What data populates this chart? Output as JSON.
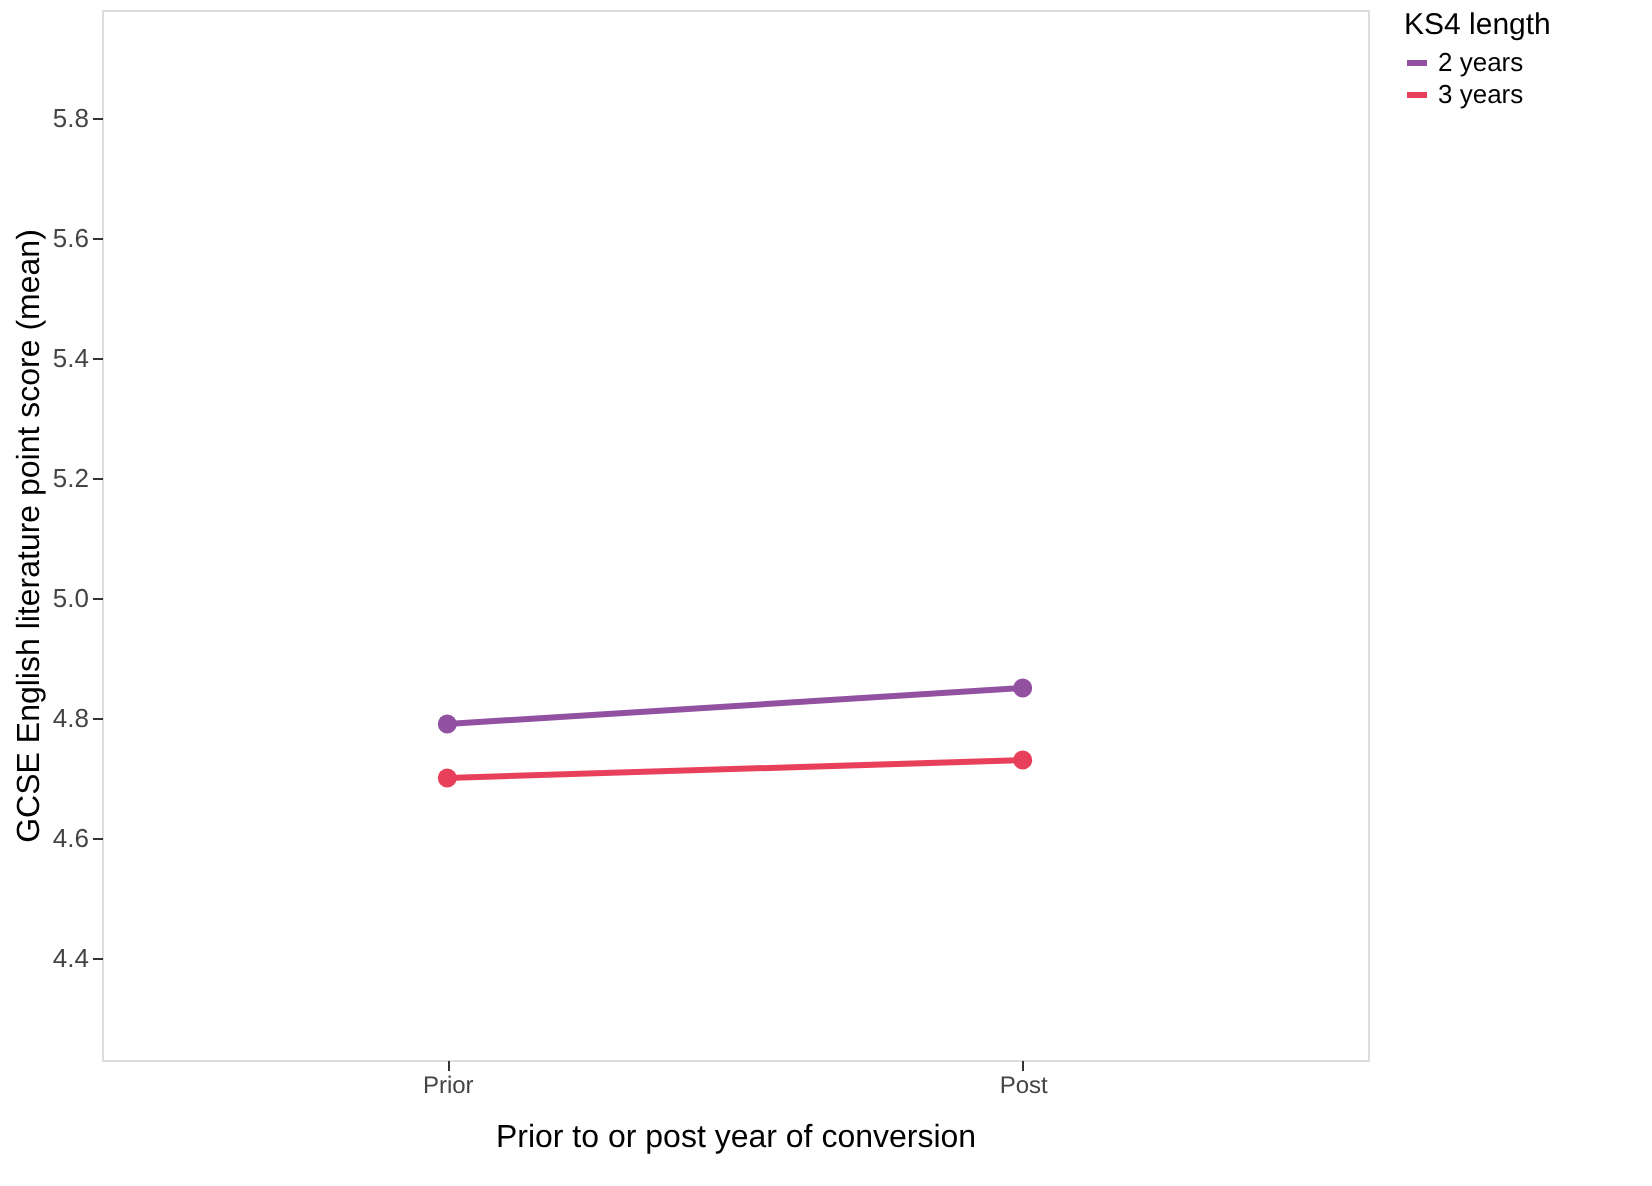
{
  "chart_data": {
    "type": "line",
    "xlabel": "Prior to or post year of conversion",
    "ylabel": "GCSE English literature point score (mean)",
    "legend_title": "KS4 length",
    "categories": [
      "Prior",
      "Post"
    ],
    "series": [
      {
        "name": "2 years",
        "color": "#9150a0",
        "values": [
          4.79,
          4.85
        ]
      },
      {
        "name": "3 years",
        "color": "#e8405a",
        "values": [
          4.7,
          4.73
        ]
      }
    ],
    "ylim": [
      4.23,
      5.98
    ],
    "yticks": [
      4.4,
      4.6,
      4.8,
      {
        "value": 5,
        "label": "5.0"
      },
      5.2,
      5.4,
      5.6,
      5.8
    ],
    "grid": false,
    "legend": "right",
    "marker": "circle",
    "line_style": "solid"
  }
}
